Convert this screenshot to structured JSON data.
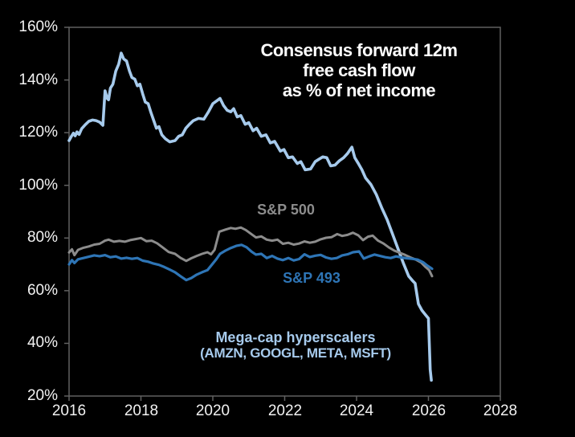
{
  "chart_data": {
    "type": "line",
    "title": "Consensus forward 12m free cash flow as % of net income",
    "title_lines": [
      "Consensus forward 12m",
      "free cash flow",
      "as % of net income"
    ],
    "background_color": "#000000",
    "grid": false,
    "legend_position": "inline-labels",
    "axis_color": "#616161",
    "tick_label_color": "#F2F2F2",
    "x_axis": {
      "min": 2016,
      "max": 2028,
      "tick_values": [
        2016,
        2018,
        2020,
        2022,
        2024,
        2026,
        2028
      ],
      "tick_labels": [
        "2016",
        "2018",
        "2020",
        "2022",
        "2024",
        "2026",
        "2028"
      ]
    },
    "y_axis": {
      "min": 20,
      "max": 160,
      "unit": "%",
      "tick_values": [
        160,
        140,
        120,
        100,
        80,
        60,
        40,
        20
      ],
      "tick_labels": [
        "160%",
        "140%",
        "120%",
        "100%",
        "80%",
        "60%",
        "40%",
        "20%"
      ]
    },
    "annotations": {
      "sp500_label": "S&P 500",
      "sp493_label": "S&P 493",
      "hyperscalers_label_line1": "Mega-cap hyperscalers",
      "hyperscalers_label_line2": "(AMZN, GOOGL, META, MSFT)"
    },
    "series": [
      {
        "name": "Mega-cap hyperscalers (AMZN, GOOGL, META, MSFT)",
        "color": "#A6CAEC",
        "stroke_width": 3.6,
        "points": [
          [
            2016.0,
            117.0
          ],
          [
            2016.06,
            118.5
          ],
          [
            2016.12,
            119.8
          ],
          [
            2016.17,
            118.8
          ],
          [
            2016.22,
            120.3
          ],
          [
            2016.28,
            119.3
          ],
          [
            2016.35,
            121.5
          ],
          [
            2016.45,
            123.0
          ],
          [
            2016.55,
            124.3
          ],
          [
            2016.65,
            124.8
          ],
          [
            2016.75,
            124.6
          ],
          [
            2016.85,
            124.0
          ],
          [
            2016.94,
            122.8
          ],
          [
            2017.0,
            135.9
          ],
          [
            2017.06,
            133.0
          ],
          [
            2017.1,
            132.5
          ],
          [
            2017.15,
            136.9
          ],
          [
            2017.22,
            138.4
          ],
          [
            2017.3,
            143.4
          ],
          [
            2017.38,
            146.0
          ],
          [
            2017.45,
            150.2
          ],
          [
            2017.52,
            148.0
          ],
          [
            2017.6,
            147.2
          ],
          [
            2017.68,
            143.4
          ],
          [
            2017.75,
            140.9
          ],
          [
            2017.83,
            140.3
          ],
          [
            2017.9,
            137.8
          ],
          [
            2017.97,
            138.4
          ],
          [
            2018.05,
            134.7
          ],
          [
            2018.12,
            131.6
          ],
          [
            2018.2,
            131.0
          ],
          [
            2018.28,
            127.6
          ],
          [
            2018.35,
            124.8
          ],
          [
            2018.43,
            121.7
          ],
          [
            2018.5,
            122.3
          ],
          [
            2018.58,
            119.2
          ],
          [
            2018.68,
            117.7
          ],
          [
            2018.8,
            116.5
          ],
          [
            2018.95,
            117.0
          ],
          [
            2019.05,
            118.6
          ],
          [
            2019.15,
            119.2
          ],
          [
            2019.25,
            121.7
          ],
          [
            2019.35,
            123.2
          ],
          [
            2019.45,
            124.5
          ],
          [
            2019.6,
            125.4
          ],
          [
            2019.75,
            125.1
          ],
          [
            2019.88,
            127.9
          ],
          [
            2020.0,
            131.0
          ],
          [
            2020.1,
            132.0
          ],
          [
            2020.2,
            133.0
          ],
          [
            2020.3,
            130.3
          ],
          [
            2020.4,
            128.5
          ],
          [
            2020.5,
            127.9
          ],
          [
            2020.58,
            129.1
          ],
          [
            2020.68,
            126.0
          ],
          [
            2020.78,
            126.5
          ],
          [
            2020.9,
            123.2
          ],
          [
            2021.0,
            123.8
          ],
          [
            2021.12,
            120.7
          ],
          [
            2021.22,
            121.7
          ],
          [
            2021.35,
            118.6
          ],
          [
            2021.48,
            119.2
          ],
          [
            2021.6,
            116.1
          ],
          [
            2021.72,
            116.7
          ],
          [
            2021.88,
            113.0
          ],
          [
            2021.98,
            113.6
          ],
          [
            2022.1,
            110.5
          ],
          [
            2022.22,
            110.8
          ],
          [
            2022.35,
            108.3
          ],
          [
            2022.45,
            109.0
          ],
          [
            2022.57,
            105.9
          ],
          [
            2022.72,
            106.2
          ],
          [
            2022.85,
            109.0
          ],
          [
            2022.95,
            109.9
          ],
          [
            2023.06,
            110.8
          ],
          [
            2023.17,
            110.5
          ],
          [
            2023.28,
            107.4
          ],
          [
            2023.4,
            107.7
          ],
          [
            2023.52,
            109.3
          ],
          [
            2023.64,
            110.5
          ],
          [
            2023.75,
            112.1
          ],
          [
            2023.87,
            114.5
          ],
          [
            2023.95,
            110.5
          ],
          [
            2024.05,
            108.3
          ],
          [
            2024.15,
            105.9
          ],
          [
            2024.25,
            102.8
          ],
          [
            2024.4,
            100.3
          ],
          [
            2024.55,
            96.5
          ],
          [
            2024.7,
            91.5
          ],
          [
            2024.85,
            87.0
          ],
          [
            2025.0,
            81.5
          ],
          [
            2025.15,
            76.0
          ],
          [
            2025.3,
            70.5
          ],
          [
            2025.45,
            65.5
          ],
          [
            2025.55,
            63.9
          ],
          [
            2025.63,
            62.8
          ],
          [
            2025.72,
            55.0
          ],
          [
            2025.82,
            52.5
          ],
          [
            2025.92,
            50.8
          ],
          [
            2026.0,
            49.5
          ],
          [
            2026.05,
            30.0
          ],
          [
            2026.08,
            26.0
          ]
        ]
      },
      {
        "name": "S&P 500",
        "color": "#8C8C8C",
        "stroke_width": 3,
        "points": [
          [
            2016.0,
            74.5
          ],
          [
            2016.08,
            75.7
          ],
          [
            2016.15,
            73.5
          ],
          [
            2016.25,
            75.5
          ],
          [
            2016.4,
            76.3
          ],
          [
            2016.55,
            76.8
          ],
          [
            2016.7,
            77.5
          ],
          [
            2016.85,
            77.8
          ],
          [
            2017.0,
            79.0
          ],
          [
            2017.1,
            79.4
          ],
          [
            2017.25,
            78.6
          ],
          [
            2017.4,
            78.9
          ],
          [
            2017.55,
            78.6
          ],
          [
            2017.7,
            79.2
          ],
          [
            2017.85,
            79.6
          ],
          [
            2018.0,
            80.0
          ],
          [
            2018.15,
            78.8
          ],
          [
            2018.3,
            79.0
          ],
          [
            2018.45,
            78.0
          ],
          [
            2018.6,
            76.5
          ],
          [
            2018.77,
            74.7
          ],
          [
            2018.95,
            74.0
          ],
          [
            2019.1,
            72.5
          ],
          [
            2019.26,
            71.3
          ],
          [
            2019.4,
            72.3
          ],
          [
            2019.55,
            73.2
          ],
          [
            2019.7,
            74.0
          ],
          [
            2019.85,
            74.6
          ],
          [
            2019.95,
            73.8
          ],
          [
            2020.05,
            75.5
          ],
          [
            2020.18,
            82.4
          ],
          [
            2020.35,
            83.2
          ],
          [
            2020.5,
            83.8
          ],
          [
            2020.63,
            83.5
          ],
          [
            2020.78,
            84.0
          ],
          [
            2020.92,
            83.0
          ],
          [
            2021.05,
            81.7
          ],
          [
            2021.2,
            80.2
          ],
          [
            2021.35,
            80.6
          ],
          [
            2021.5,
            79.4
          ],
          [
            2021.65,
            79.0
          ],
          [
            2021.8,
            79.4
          ],
          [
            2021.95,
            77.8
          ],
          [
            2022.1,
            78.2
          ],
          [
            2022.25,
            77.5
          ],
          [
            2022.4,
            77.9
          ],
          [
            2022.55,
            78.7
          ],
          [
            2022.7,
            78.2
          ],
          [
            2022.85,
            78.6
          ],
          [
            2023.0,
            79.5
          ],
          [
            2023.15,
            80.1
          ],
          [
            2023.3,
            80.3
          ],
          [
            2023.46,
            81.5
          ],
          [
            2023.6,
            80.8
          ],
          [
            2023.75,
            81.2
          ],
          [
            2023.9,
            82.0
          ],
          [
            2024.05,
            81.0
          ],
          [
            2024.18,
            79.2
          ],
          [
            2024.32,
            80.5
          ],
          [
            2024.45,
            80.9
          ],
          [
            2024.6,
            79.0
          ],
          [
            2024.75,
            77.9
          ],
          [
            2024.9,
            76.4
          ],
          [
            2025.05,
            75.2
          ],
          [
            2025.2,
            74.4
          ],
          [
            2025.35,
            73.6
          ],
          [
            2025.5,
            72.6
          ],
          [
            2025.65,
            71.8
          ],
          [
            2025.8,
            70.7
          ],
          [
            2025.92,
            69.0
          ],
          [
            2026.02,
            67.8
          ],
          [
            2026.1,
            65.5
          ]
        ]
      },
      {
        "name": "S&P 493",
        "color": "#2E75B6",
        "stroke_width": 3.2,
        "points": [
          [
            2016.0,
            70.0
          ],
          [
            2016.08,
            71.6
          ],
          [
            2016.15,
            70.5
          ],
          [
            2016.25,
            71.9
          ],
          [
            2016.4,
            72.4
          ],
          [
            2016.55,
            72.9
          ],
          [
            2016.7,
            73.4
          ],
          [
            2016.85,
            73.1
          ],
          [
            2017.0,
            73.5
          ],
          [
            2017.15,
            72.7
          ],
          [
            2017.3,
            73.0
          ],
          [
            2017.45,
            72.2
          ],
          [
            2017.6,
            72.5
          ],
          [
            2017.75,
            72.1
          ],
          [
            2017.9,
            72.4
          ],
          [
            2018.05,
            71.4
          ],
          [
            2018.2,
            71.0
          ],
          [
            2018.35,
            70.3
          ],
          [
            2018.5,
            69.8
          ],
          [
            2018.65,
            69.0
          ],
          [
            2018.8,
            68.0
          ],
          [
            2018.95,
            67.0
          ],
          [
            2019.1,
            65.5
          ],
          [
            2019.26,
            64.0
          ],
          [
            2019.4,
            64.8
          ],
          [
            2019.55,
            66.1
          ],
          [
            2019.7,
            67.0
          ],
          [
            2019.85,
            67.8
          ],
          [
            2019.97,
            69.8
          ],
          [
            2020.1,
            72.0
          ],
          [
            2020.2,
            74.0
          ],
          [
            2020.35,
            75.2
          ],
          [
            2020.5,
            76.2
          ],
          [
            2020.65,
            77.0
          ],
          [
            2020.8,
            77.4
          ],
          [
            2020.94,
            76.5
          ],
          [
            2021.08,
            74.8
          ],
          [
            2021.2,
            73.7
          ],
          [
            2021.35,
            74.0
          ],
          [
            2021.5,
            72.4
          ],
          [
            2021.65,
            73.2
          ],
          [
            2021.8,
            72.2
          ],
          [
            2021.95,
            71.6
          ],
          [
            2022.1,
            72.4
          ],
          [
            2022.25,
            71.5
          ],
          [
            2022.4,
            72.0
          ],
          [
            2022.55,
            73.8
          ],
          [
            2022.7,
            72.8
          ],
          [
            2022.85,
            73.3
          ],
          [
            2023.0,
            73.6
          ],
          [
            2023.15,
            72.6
          ],
          [
            2023.3,
            72.1
          ],
          [
            2023.45,
            72.4
          ],
          [
            2023.6,
            73.4
          ],
          [
            2023.75,
            73.8
          ],
          [
            2023.9,
            74.6
          ],
          [
            2024.07,
            74.9
          ],
          [
            2024.2,
            72.2
          ],
          [
            2024.35,
            73.0
          ],
          [
            2024.5,
            73.7
          ],
          [
            2024.65,
            73.2
          ],
          [
            2024.8,
            72.7
          ],
          [
            2024.95,
            72.4
          ],
          [
            2025.1,
            73.0
          ],
          [
            2025.25,
            72.6
          ],
          [
            2025.4,
            72.3
          ],
          [
            2025.55,
            72.1
          ],
          [
            2025.7,
            71.8
          ],
          [
            2025.85,
            70.8
          ],
          [
            2025.97,
            69.5
          ],
          [
            2026.1,
            68.3
          ]
        ]
      }
    ]
  }
}
